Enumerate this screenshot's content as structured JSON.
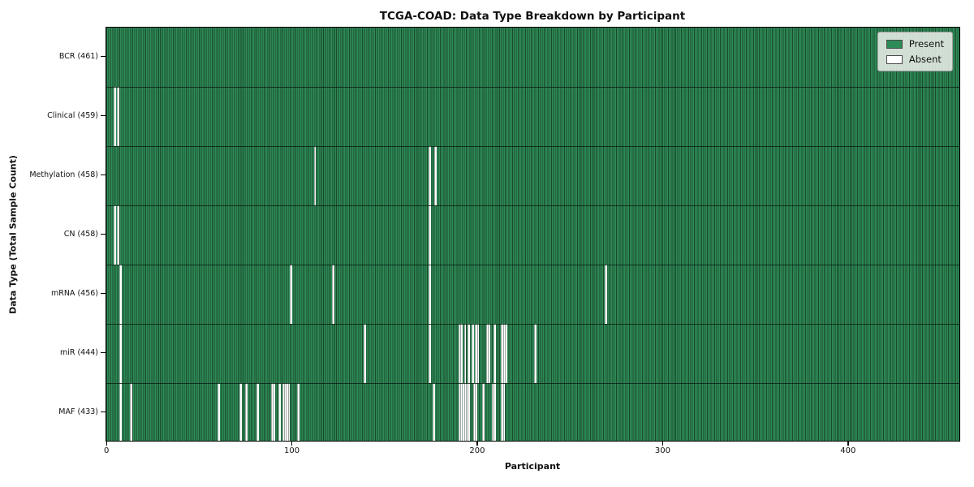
{
  "chart_data": {
    "type": "heatmap",
    "title": "TCGA-COAD: Data Type Breakdown by Participant",
    "xlabel": "Participant",
    "ylabel": "Data Type (Total Sample Count)",
    "x_ticks": [
      0,
      100,
      200,
      300,
      400
    ],
    "x_range": [
      -0.5,
      460.5
    ],
    "n_participants": 461,
    "grid": false,
    "legend_position": "upper right",
    "legend": [
      {
        "label": "Present",
        "color": "#2e8b57"
      },
      {
        "label": "Absent",
        "color": "#ffffff"
      }
    ],
    "colors": {
      "present_fill": "#2e8b57",
      "bar_edge": "#1a4a2c",
      "absent": "#ffffff",
      "plot_border": "#000000"
    },
    "rows": [
      {
        "label": "BCR (461)",
        "name": "BCR",
        "total": 461,
        "absent": []
      },
      {
        "label": "Clinical (459)",
        "name": "Clinical",
        "total": 459,
        "absent": [
          4,
          6
        ]
      },
      {
        "label": "Methylation (458)",
        "name": "Methylation",
        "total": 458,
        "absent": [
          112,
          174,
          177
        ]
      },
      {
        "label": "CN (458)",
        "name": "CN",
        "total": 458,
        "absent": [
          4,
          6,
          174
        ]
      },
      {
        "label": "mRNA (456)",
        "name": "mRNA",
        "total": 456,
        "absent": [
          7,
          99,
          122,
          174,
          269
        ]
      },
      {
        "label": "miR (444)",
        "name": "miR",
        "total": 444,
        "absent": [
          7,
          139,
          174,
          190,
          191,
          193,
          195,
          197,
          199,
          200,
          205,
          206,
          209,
          213,
          214,
          215,
          231
        ]
      },
      {
        "label": "MAF (433)",
        "name": "MAF",
        "total": 433,
        "absent": [
          7,
          13,
          60,
          72,
          75,
          81,
          89,
          90,
          93,
          95,
          96,
          97,
          98,
          103,
          176,
          190,
          191,
          192,
          193,
          194,
          195,
          198,
          199,
          203,
          208,
          209,
          213,
          214
        ]
      }
    ]
  }
}
